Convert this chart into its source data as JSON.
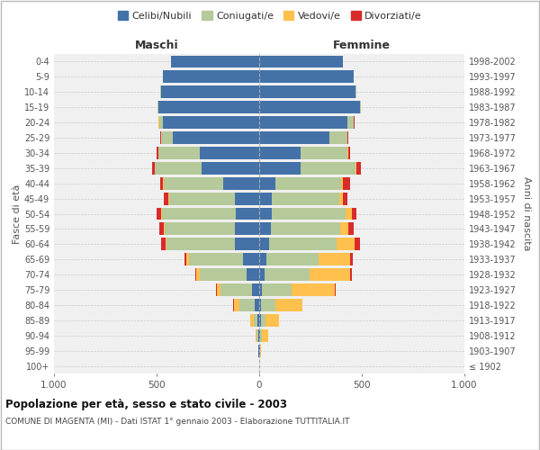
{
  "age_groups": [
    "100+",
    "95-99",
    "90-94",
    "85-89",
    "80-84",
    "75-79",
    "70-74",
    "65-69",
    "60-64",
    "55-59",
    "50-54",
    "45-49",
    "40-44",
    "35-39",
    "30-34",
    "25-29",
    "20-24",
    "15-19",
    "10-14",
    "5-9",
    "0-4"
  ],
  "birth_years": [
    "≤ 1902",
    "1903-1907",
    "1908-1912",
    "1913-1917",
    "1918-1922",
    "1923-1927",
    "1928-1932",
    "1933-1937",
    "1938-1942",
    "1943-1947",
    "1948-1952",
    "1953-1957",
    "1958-1962",
    "1963-1967",
    "1968-1972",
    "1973-1977",
    "1978-1982",
    "1983-1987",
    "1988-1992",
    "1993-1997",
    "1998-2002"
  ],
  "maschi": {
    "celibi": [
      2,
      3,
      5,
      8,
      20,
      35,
      60,
      80,
      120,
      120,
      115,
      120,
      175,
      280,
      290,
      420,
      470,
      490,
      480,
      470,
      430
    ],
    "coniugati": [
      0,
      2,
      8,
      20,
      75,
      155,
      230,
      260,
      330,
      340,
      360,
      320,
      290,
      230,
      200,
      60,
      15,
      5,
      2,
      0,
      0
    ],
    "vedovi": [
      0,
      1,
      5,
      15,
      30,
      15,
      15,
      15,
      8,
      5,
      5,
      5,
      3,
      0,
      0,
      0,
      5,
      0,
      0,
      0,
      0
    ],
    "divorziati": [
      0,
      0,
      0,
      0,
      2,
      5,
      5,
      8,
      20,
      20,
      18,
      18,
      15,
      10,
      8,
      3,
      0,
      0,
      0,
      0,
      0
    ]
  },
  "femmine": {
    "nubili": [
      2,
      3,
      5,
      10,
      10,
      15,
      25,
      35,
      50,
      55,
      60,
      60,
      80,
      200,
      200,
      340,
      430,
      490,
      470,
      460,
      410
    ],
    "coniugate": [
      0,
      2,
      10,
      20,
      70,
      145,
      220,
      255,
      325,
      340,
      360,
      330,
      320,
      270,
      230,
      90,
      30,
      5,
      2,
      0,
      0
    ],
    "vedove": [
      0,
      5,
      30,
      65,
      130,
      210,
      200,
      155,
      90,
      40,
      30,
      20,
      10,
      5,
      3,
      2,
      2,
      0,
      0,
      0,
      0
    ],
    "divorziate": [
      0,
      0,
      0,
      0,
      2,
      3,
      5,
      10,
      25,
      25,
      25,
      20,
      35,
      20,
      10,
      3,
      2,
      0,
      0,
      0,
      0
    ]
  },
  "colors": {
    "celibi": "#4472a8",
    "coniugati": "#b5c99a",
    "vedovi": "#ffc04d",
    "divorziati": "#d92b2b"
  },
  "xlim": 1000,
  "title": "Popolazione per età, sesso e stato civile - 2003",
  "subtitle": "COMUNE DI MAGENTA (MI) - Dati ISTAT 1° gennaio 2003 - Elaborazione TUTTITALIA.IT",
  "ylabel_left": "Fasce di età",
  "ylabel_right": "Anni di nascita",
  "xlabel_left": "Maschi",
  "xlabel_right": "Femmine",
  "legend_labels": [
    "Celibi/Nubili",
    "Coniugati/e",
    "Vedovi/e",
    "Divorziati/e"
  ],
  "bg_color": "#f0f0f0",
  "grid_color": "#cccccc"
}
